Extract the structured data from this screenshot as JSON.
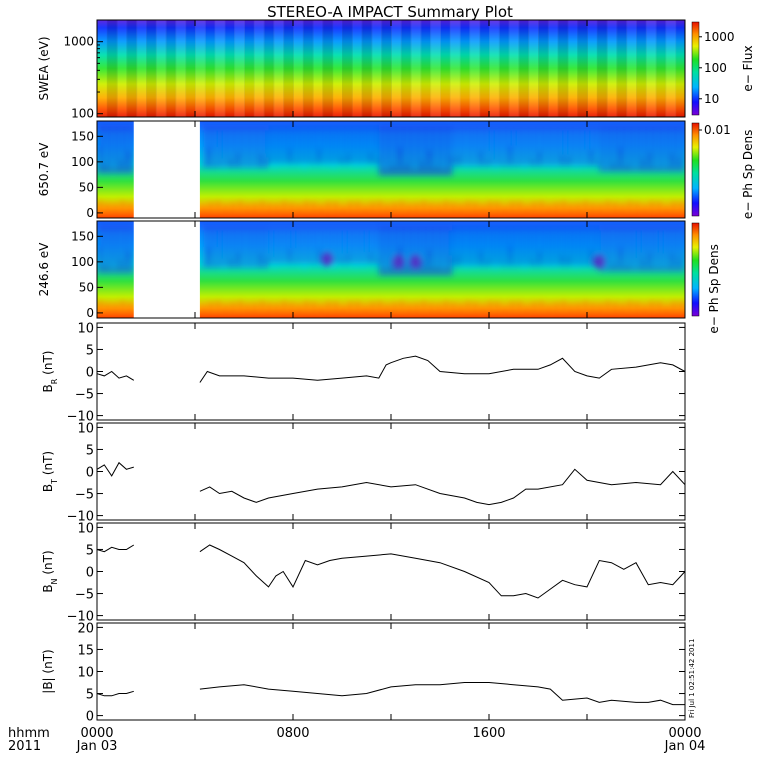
{
  "title": "STEREO-A IMPACT Summary Plot",
  "time_axis": {
    "corner_label_1": "hhmm",
    "corner_label_2": "2011",
    "ticks": [
      {
        "label": "0000",
        "sub": "Jan 03",
        "hour": 0
      },
      {
        "label": "0800",
        "sub": "",
        "hour": 8
      },
      {
        "label": "1600",
        "sub": "",
        "hour": 16
      },
      {
        "label": "0000",
        "sub": "Jan 04",
        "hour": 24
      }
    ]
  },
  "timestamp": "Fri Jul 1 02:51:42 2011",
  "chart_data": [
    {
      "type": "heatmap",
      "id": "swea",
      "ylabel": "SWEA (eV)",
      "ytick_labels": [
        "1000",
        "100"
      ],
      "ylim": [
        90,
        2000
      ],
      "yscale": "log",
      "colorbar": {
        "label": "e− Flux",
        "tick_labels": [
          "1000",
          "100",
          "10"
        ],
        "scale": "log",
        "range": [
          3,
          3000
        ]
      },
      "data_gaps": []
    },
    {
      "type": "heatmap",
      "id": "pad650",
      "ylabel": "650.7 eV",
      "ytick_labels": [
        "150",
        "100",
        "50",
        "0"
      ],
      "ylim": [
        -10,
        180
      ],
      "colorbar": {
        "label": "e− Ph Sp Dens",
        "tick_labels": [
          "0.01"
        ]
      },
      "data_gaps": [
        [
          1.5,
          4.2
        ]
      ]
    },
    {
      "type": "heatmap",
      "id": "pad246",
      "ylabel": "246.6 eV",
      "ytick_labels": [
        "150",
        "100",
        "50",
        "0"
      ],
      "ylim": [
        -10,
        180
      ],
      "colorbar": {
        "label": "e− Ph Sp Dens",
        "tick_labels": []
      },
      "data_gaps": [
        [
          1.5,
          4.2
        ]
      ]
    },
    {
      "type": "line",
      "id": "br",
      "ylabel": "B",
      "ylabel_sub": "R",
      "ylabel_unit": " (nT)",
      "ylim": [
        -11,
        11
      ],
      "ytick_labels": [
        "10",
        "5",
        "0",
        "−5",
        "−10"
      ],
      "ytick_values": [
        10,
        5,
        0,
        -5,
        -10
      ],
      "segments": [
        {
          "x": [
            0.0,
            0.3,
            0.6,
            0.9,
            1.2,
            1.5
          ],
          "y": [
            -0.5,
            -1.0,
            0.0,
            -1.5,
            -1.0,
            -2.0
          ]
        },
        {
          "x": [
            4.2,
            4.5,
            5.0,
            6.0,
            7.0,
            8.0,
            9.0,
            10.0,
            11.0,
            11.5,
            11.8,
            12.0,
            12.5,
            13.0,
            13.5,
            14.0,
            15.0,
            16.0,
            17.0,
            18.0,
            18.5,
            19.0,
            19.5,
            20.0,
            20.5,
            21.0,
            22.0,
            23.0,
            23.5,
            24.0
          ],
          "y": [
            -2.5,
            0.0,
            -1.0,
            -1.0,
            -1.5,
            -1.5,
            -2.0,
            -1.5,
            -1.0,
            -1.5,
            1.5,
            2.0,
            3.0,
            3.5,
            2.5,
            0.0,
            -0.5,
            -0.5,
            0.5,
            0.5,
            1.5,
            3.0,
            0.0,
            -1.0,
            -1.5,
            0.5,
            1.0,
            2.0,
            1.5,
            0.0
          ]
        }
      ]
    },
    {
      "type": "line",
      "id": "bt",
      "ylabel": "B",
      "ylabel_sub": "T",
      "ylabel_unit": " (nT)",
      "ylim": [
        -11,
        11
      ],
      "ytick_labels": [
        "10",
        "5",
        "0",
        "−5",
        "−10"
      ],
      "ytick_values": [
        10,
        5,
        0,
        -5,
        -10
      ],
      "segments": [
        {
          "x": [
            0.0,
            0.3,
            0.6,
            0.9,
            1.2,
            1.5
          ],
          "y": [
            0.5,
            1.5,
            -1.0,
            2.0,
            0.5,
            1.0
          ]
        },
        {
          "x": [
            4.2,
            4.6,
            5.0,
            5.5,
            6.0,
            6.5,
            7.0,
            8.0,
            9.0,
            10.0,
            11.0,
            12.0,
            13.0,
            14.0,
            15.0,
            15.5,
            16.0,
            16.5,
            17.0,
            17.5,
            18.0,
            19.0,
            19.5,
            20.0,
            21.0,
            22.0,
            23.0,
            23.5,
            24.0
          ],
          "y": [
            -4.5,
            -3.5,
            -5.0,
            -4.5,
            -6.0,
            -7.0,
            -6.0,
            -5.0,
            -4.0,
            -3.5,
            -2.5,
            -3.5,
            -3.0,
            -5.0,
            -6.0,
            -7.0,
            -7.5,
            -7.0,
            -6.0,
            -4.0,
            -4.0,
            -3.0,
            0.5,
            -2.0,
            -3.0,
            -2.5,
            -3.0,
            0.0,
            -3.0
          ]
        }
      ]
    },
    {
      "type": "line",
      "id": "bn",
      "ylabel": "B",
      "ylabel_sub": "N",
      "ylabel_unit": " (nT)",
      "ylim": [
        -11,
        11
      ],
      "ytick_labels": [
        "10",
        "5",
        "0",
        "−5",
        "−10"
      ],
      "ytick_values": [
        10,
        5,
        0,
        -5,
        -10
      ],
      "segments": [
        {
          "x": [
            0.0,
            0.3,
            0.6,
            0.9,
            1.2,
            1.5
          ],
          "y": [
            5.0,
            4.5,
            5.5,
            5.0,
            5.0,
            6.0
          ]
        },
        {
          "x": [
            4.2,
            4.6,
            5.0,
            5.5,
            6.0,
            6.5,
            7.0,
            7.3,
            7.6,
            8.0,
            8.5,
            9.0,
            9.5,
            10.0,
            11.0,
            12.0,
            13.0,
            14.0,
            15.0,
            16.0,
            16.5,
            17.0,
            17.5,
            18.0,
            18.5,
            19.0,
            19.5,
            20.0,
            20.5,
            21.0,
            21.5,
            22.0,
            22.5,
            23.0,
            23.5,
            24.0
          ],
          "y": [
            4.5,
            6.0,
            5.0,
            3.5,
            2.0,
            -1.0,
            -3.5,
            -1.0,
            0.0,
            -3.5,
            2.5,
            1.5,
            2.5,
            3.0,
            3.5,
            4.0,
            3.0,
            2.0,
            0.0,
            -2.5,
            -5.5,
            -5.5,
            -5.0,
            -6.0,
            -4.0,
            -2.0,
            -3.0,
            -3.5,
            2.5,
            2.0,
            0.5,
            2.0,
            -3.0,
            -2.5,
            -3.0,
            0.0
          ]
        }
      ]
    },
    {
      "type": "line",
      "id": "bmag",
      "ylabel": "|B| (nT)",
      "ylim": [
        -1,
        21
      ],
      "ytick_labels": [
        "20",
        "15",
        "10",
        "5",
        "0"
      ],
      "ytick_values": [
        20,
        15,
        10,
        5,
        0
      ],
      "segments": [
        {
          "x": [
            0.0,
            0.3,
            0.6,
            0.9,
            1.2,
            1.5
          ],
          "y": [
            5.0,
            4.5,
            4.5,
            5.0,
            5.0,
            5.5
          ]
        },
        {
          "x": [
            4.2,
            5.0,
            6.0,
            7.0,
            8.0,
            9.0,
            10.0,
            11.0,
            12.0,
            13.0,
            14.0,
            15.0,
            16.0,
            17.0,
            18.0,
            18.5,
            19.0,
            20.0,
            20.5,
            21.0,
            22.0,
            22.5,
            23.0,
            23.5,
            24.0
          ],
          "y": [
            6.0,
            6.5,
            7.0,
            6.0,
            5.5,
            5.0,
            4.5,
            5.0,
            6.5,
            7.0,
            7.0,
            7.5,
            7.5,
            7.0,
            6.5,
            6.0,
            3.5,
            4.0,
            3.0,
            3.5,
            3.0,
            3.0,
            3.5,
            2.5,
            2.5
          ]
        }
      ]
    }
  ]
}
